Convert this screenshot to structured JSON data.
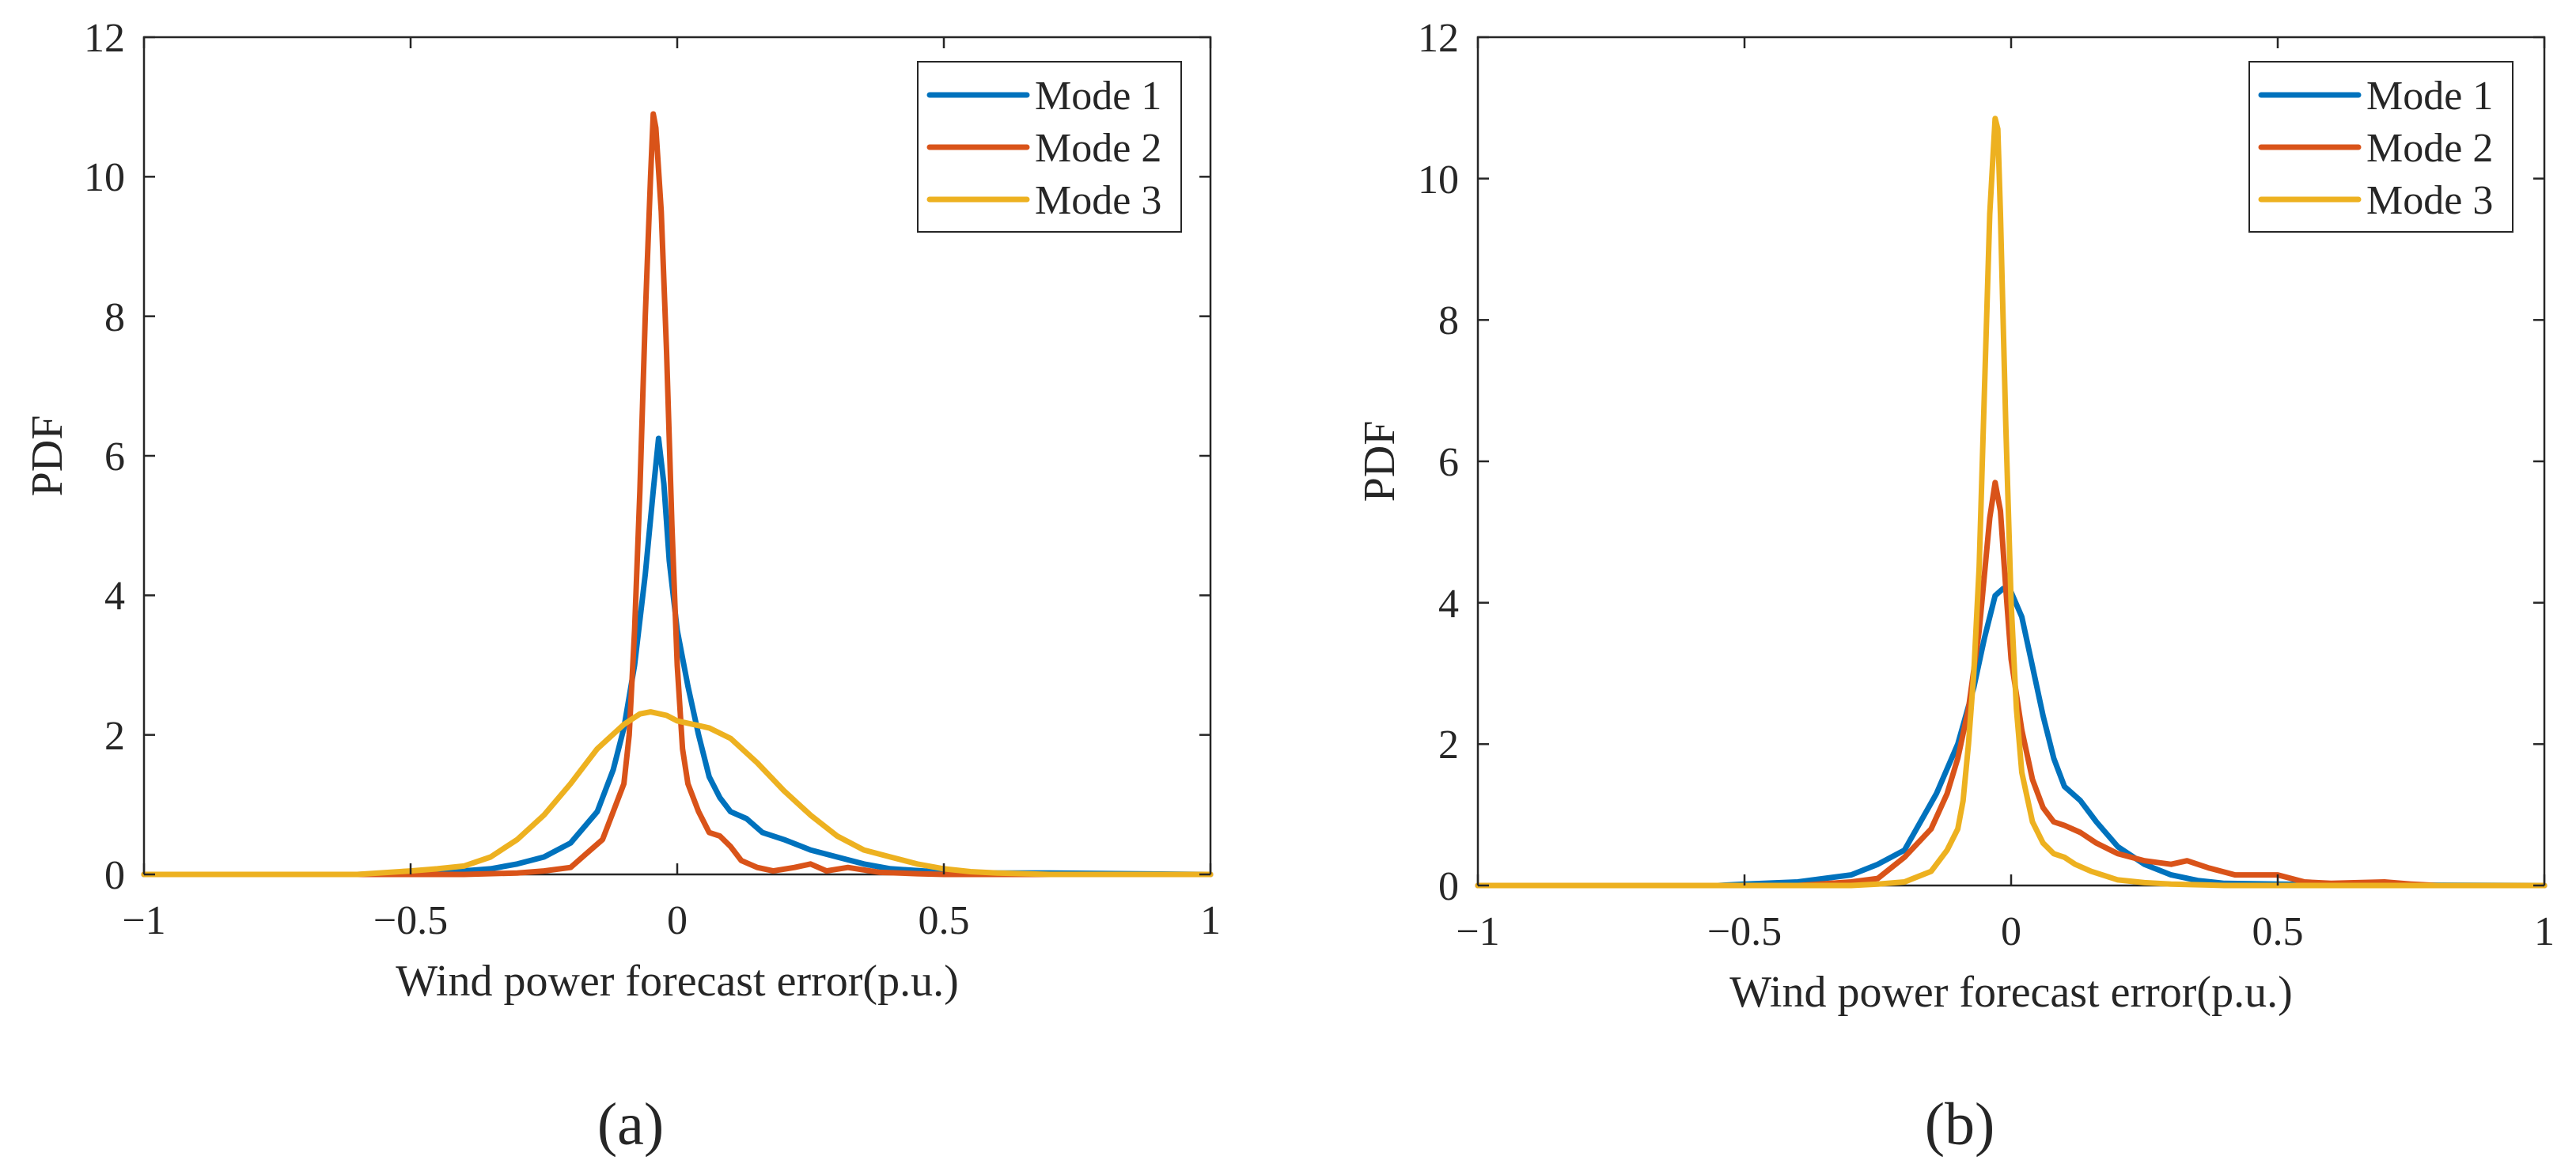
{
  "chart_data": [
    {
      "type": "line",
      "panel_label": "(a)",
      "xlabel": "Wind power forecast error(p.u.)",
      "ylabel": "PDF",
      "xlim": [
        -1,
        1
      ],
      "ylim": [
        0,
        12
      ],
      "xticks": [
        -1,
        -0.5,
        0,
        0.5,
        1
      ],
      "xtick_labels": [
        "−1",
        "−0.5",
        "0",
        "0.5",
        "1"
      ],
      "yticks": [
        0,
        2,
        4,
        6,
        8,
        10,
        12
      ],
      "ytick_labels": [
        "0",
        "2",
        "4",
        "6",
        "8",
        "10",
        "12"
      ],
      "grid": false,
      "legend_position": "top-right",
      "series": [
        {
          "name": "Mode 1",
          "color": "#0072BD",
          "points": [
            [
              -1,
              0
            ],
            [
              -0.6,
              0
            ],
            [
              -0.45,
              0.02
            ],
            [
              -0.35,
              0.08
            ],
            [
              -0.3,
              0.15
            ],
            [
              -0.25,
              0.25
            ],
            [
              -0.2,
              0.45
            ],
            [
              -0.15,
              0.9
            ],
            [
              -0.12,
              1.5
            ],
            [
              -0.1,
              2.1
            ],
            [
              -0.08,
              3.0
            ],
            [
              -0.06,
              4.3
            ],
            [
              -0.045,
              5.5
            ],
            [
              -0.035,
              6.25
            ],
            [
              -0.025,
              5.6
            ],
            [
              -0.015,
              4.5
            ],
            [
              0,
              3.5
            ],
            [
              0.02,
              2.7
            ],
            [
              0.04,
              2.0
            ],
            [
              0.06,
              1.4
            ],
            [
              0.08,
              1.1
            ],
            [
              0.1,
              0.9
            ],
            [
              0.13,
              0.8
            ],
            [
              0.16,
              0.6
            ],
            [
              0.2,
              0.5
            ],
            [
              0.25,
              0.35
            ],
            [
              0.3,
              0.25
            ],
            [
              0.35,
              0.15
            ],
            [
              0.4,
              0.08
            ],
            [
              0.5,
              0.03
            ],
            [
              0.6,
              0.02
            ],
            [
              0.7,
              0.02
            ],
            [
              1,
              0
            ]
          ]
        },
        {
          "name": "Mode 2",
          "color": "#D95319",
          "points": [
            [
              -1,
              0
            ],
            [
              -0.4,
              0
            ],
            [
              -0.3,
              0.02
            ],
            [
              -0.25,
              0.05
            ],
            [
              -0.2,
              0.1
            ],
            [
              -0.17,
              0.3
            ],
            [
              -0.14,
              0.5
            ],
            [
              -0.12,
              0.9
            ],
            [
              -0.1,
              1.3
            ],
            [
              -0.09,
              2.0
            ],
            [
              -0.08,
              3.5
            ],
            [
              -0.07,
              5.5
            ],
            [
              -0.06,
              8.0
            ],
            [
              -0.05,
              10.0
            ],
            [
              -0.045,
              10.9
            ],
            [
              -0.04,
              10.7
            ],
            [
              -0.03,
              9.5
            ],
            [
              -0.02,
              7.5
            ],
            [
              -0.01,
              5.0
            ],
            [
              0,
              3.0
            ],
            [
              0.01,
              1.8
            ],
            [
              0.02,
              1.3
            ],
            [
              0.04,
              0.9
            ],
            [
              0.06,
              0.6
            ],
            [
              0.08,
              0.55
            ],
            [
              0.1,
              0.4
            ],
            [
              0.12,
              0.2
            ],
            [
              0.15,
              0.1
            ],
            [
              0.18,
              0.05
            ],
            [
              0.22,
              0.1
            ],
            [
              0.25,
              0.15
            ],
            [
              0.28,
              0.05
            ],
            [
              0.32,
              0.1
            ],
            [
              0.38,
              0.03
            ],
            [
              0.45,
              0.01
            ],
            [
              0.5,
              0
            ],
            [
              1,
              0
            ]
          ]
        },
        {
          "name": "Mode 3",
          "color": "#EDB120",
          "points": [
            [
              -1,
              0
            ],
            [
              -0.6,
              0
            ],
            [
              -0.5,
              0.05
            ],
            [
              -0.45,
              0.08
            ],
            [
              -0.4,
              0.12
            ],
            [
              -0.35,
              0.25
            ],
            [
              -0.3,
              0.5
            ],
            [
              -0.25,
              0.85
            ],
            [
              -0.2,
              1.3
            ],
            [
              -0.15,
              1.8
            ],
            [
              -0.1,
              2.15
            ],
            [
              -0.07,
              2.3
            ],
            [
              -0.05,
              2.33
            ],
            [
              -0.02,
              2.28
            ],
            [
              0,
              2.2
            ],
            [
              0.03,
              2.15
            ],
            [
              0.06,
              2.1
            ],
            [
              0.1,
              1.95
            ],
            [
              0.15,
              1.6
            ],
            [
              0.2,
              1.2
            ],
            [
              0.25,
              0.85
            ],
            [
              0.3,
              0.55
            ],
            [
              0.35,
              0.35
            ],
            [
              0.4,
              0.25
            ],
            [
              0.45,
              0.15
            ],
            [
              0.5,
              0.08
            ],
            [
              0.55,
              0.04
            ],
            [
              0.6,
              0.02
            ],
            [
              0.7,
              0
            ],
            [
              1,
              0
            ]
          ]
        }
      ]
    },
    {
      "type": "line",
      "panel_label": "(b)",
      "xlabel": "Wind power forecast error(p.u.)",
      "ylabel": "PDF",
      "xlim": [
        -1,
        1
      ],
      "ylim": [
        0,
        12
      ],
      "xticks": [
        -1,
        -0.5,
        0,
        0.5,
        1
      ],
      "xtick_labels": [
        "−1",
        "−0.5",
        "0",
        "0.5",
        "1"
      ],
      "yticks": [
        0,
        2,
        4,
        6,
        8,
        10,
        12
      ],
      "ytick_labels": [
        "0",
        "2",
        "4",
        "6",
        "8",
        "10",
        "12"
      ],
      "grid": false,
      "legend_position": "top-right",
      "series": [
        {
          "name": "Mode 1",
          "color": "#0072BD",
          "points": [
            [
              -1,
              0
            ],
            [
              -0.55,
              0
            ],
            [
              -0.5,
              0.02
            ],
            [
              -0.4,
              0.05
            ],
            [
              -0.3,
              0.15
            ],
            [
              -0.25,
              0.3
            ],
            [
              -0.2,
              0.5
            ],
            [
              -0.17,
              0.9
            ],
            [
              -0.14,
              1.3
            ],
            [
              -0.1,
              2.0
            ],
            [
              -0.07,
              2.8
            ],
            [
              -0.05,
              3.5
            ],
            [
              -0.03,
              4.1
            ],
            [
              -0.015,
              4.2
            ],
            [
              0,
              4.15
            ],
            [
              0.02,
              3.8
            ],
            [
              0.04,
              3.1
            ],
            [
              0.06,
              2.4
            ],
            [
              0.08,
              1.8
            ],
            [
              0.1,
              1.4
            ],
            [
              0.13,
              1.2
            ],
            [
              0.16,
              0.9
            ],
            [
              0.2,
              0.55
            ],
            [
              0.25,
              0.3
            ],
            [
              0.3,
              0.15
            ],
            [
              0.35,
              0.07
            ],
            [
              0.4,
              0.03
            ],
            [
              0.5,
              0.02
            ],
            [
              0.6,
              0.01
            ],
            [
              1,
              0
            ]
          ]
        },
        {
          "name": "Mode 2",
          "color": "#D95319",
          "points": [
            [
              -1,
              0
            ],
            [
              -0.4,
              0
            ],
            [
              -0.3,
              0.05
            ],
            [
              -0.25,
              0.1
            ],
            [
              -0.2,
              0.4
            ],
            [
              -0.15,
              0.8
            ],
            [
              -0.12,
              1.3
            ],
            [
              -0.1,
              1.8
            ],
            [
              -0.08,
              2.5
            ],
            [
              -0.06,
              3.6
            ],
            [
              -0.05,
              4.4
            ],
            [
              -0.04,
              5.2
            ],
            [
              -0.03,
              5.7
            ],
            [
              -0.02,
              5.3
            ],
            [
              -0.01,
              4.2
            ],
            [
              0,
              3.2
            ],
            [
              0.02,
              2.2
            ],
            [
              0.04,
              1.5
            ],
            [
              0.06,
              1.1
            ],
            [
              0.08,
              0.9
            ],
            [
              0.1,
              0.85
            ],
            [
              0.13,
              0.75
            ],
            [
              0.16,
              0.6
            ],
            [
              0.2,
              0.45
            ],
            [
              0.25,
              0.35
            ],
            [
              0.3,
              0.3
            ],
            [
              0.33,
              0.35
            ],
            [
              0.37,
              0.25
            ],
            [
              0.42,
              0.15
            ],
            [
              0.46,
              0.15
            ],
            [
              0.5,
              0.15
            ],
            [
              0.55,
              0.05
            ],
            [
              0.6,
              0.03
            ],
            [
              0.7,
              0.05
            ],
            [
              0.75,
              0.02
            ],
            [
              0.8,
              0
            ],
            [
              1,
              0
            ]
          ]
        },
        {
          "name": "Mode 3",
          "color": "#EDB120",
          "points": [
            [
              -1,
              0
            ],
            [
              -0.3,
              0
            ],
            [
              -0.25,
              0.02
            ],
            [
              -0.2,
              0.05
            ],
            [
              -0.15,
              0.2
            ],
            [
              -0.12,
              0.5
            ],
            [
              -0.1,
              0.8
            ],
            [
              -0.09,
              1.2
            ],
            [
              -0.08,
              2.0
            ],
            [
              -0.07,
              3.0
            ],
            [
              -0.06,
              4.5
            ],
            [
              -0.05,
              7.0
            ],
            [
              -0.04,
              9.5
            ],
            [
              -0.03,
              10.85
            ],
            [
              -0.025,
              10.7
            ],
            [
              -0.02,
              9.5
            ],
            [
              -0.01,
              6.5
            ],
            [
              0,
              4.0
            ],
            [
              0.01,
              2.5
            ],
            [
              0.02,
              1.6
            ],
            [
              0.04,
              0.9
            ],
            [
              0.06,
              0.6
            ],
            [
              0.08,
              0.45
            ],
            [
              0.1,
              0.4
            ],
            [
              0.12,
              0.3
            ],
            [
              0.15,
              0.2
            ],
            [
              0.2,
              0.08
            ],
            [
              0.25,
              0.04
            ],
            [
              0.3,
              0.02
            ],
            [
              0.4,
              0
            ],
            [
              1,
              0
            ]
          ]
        }
      ]
    }
  ]
}
